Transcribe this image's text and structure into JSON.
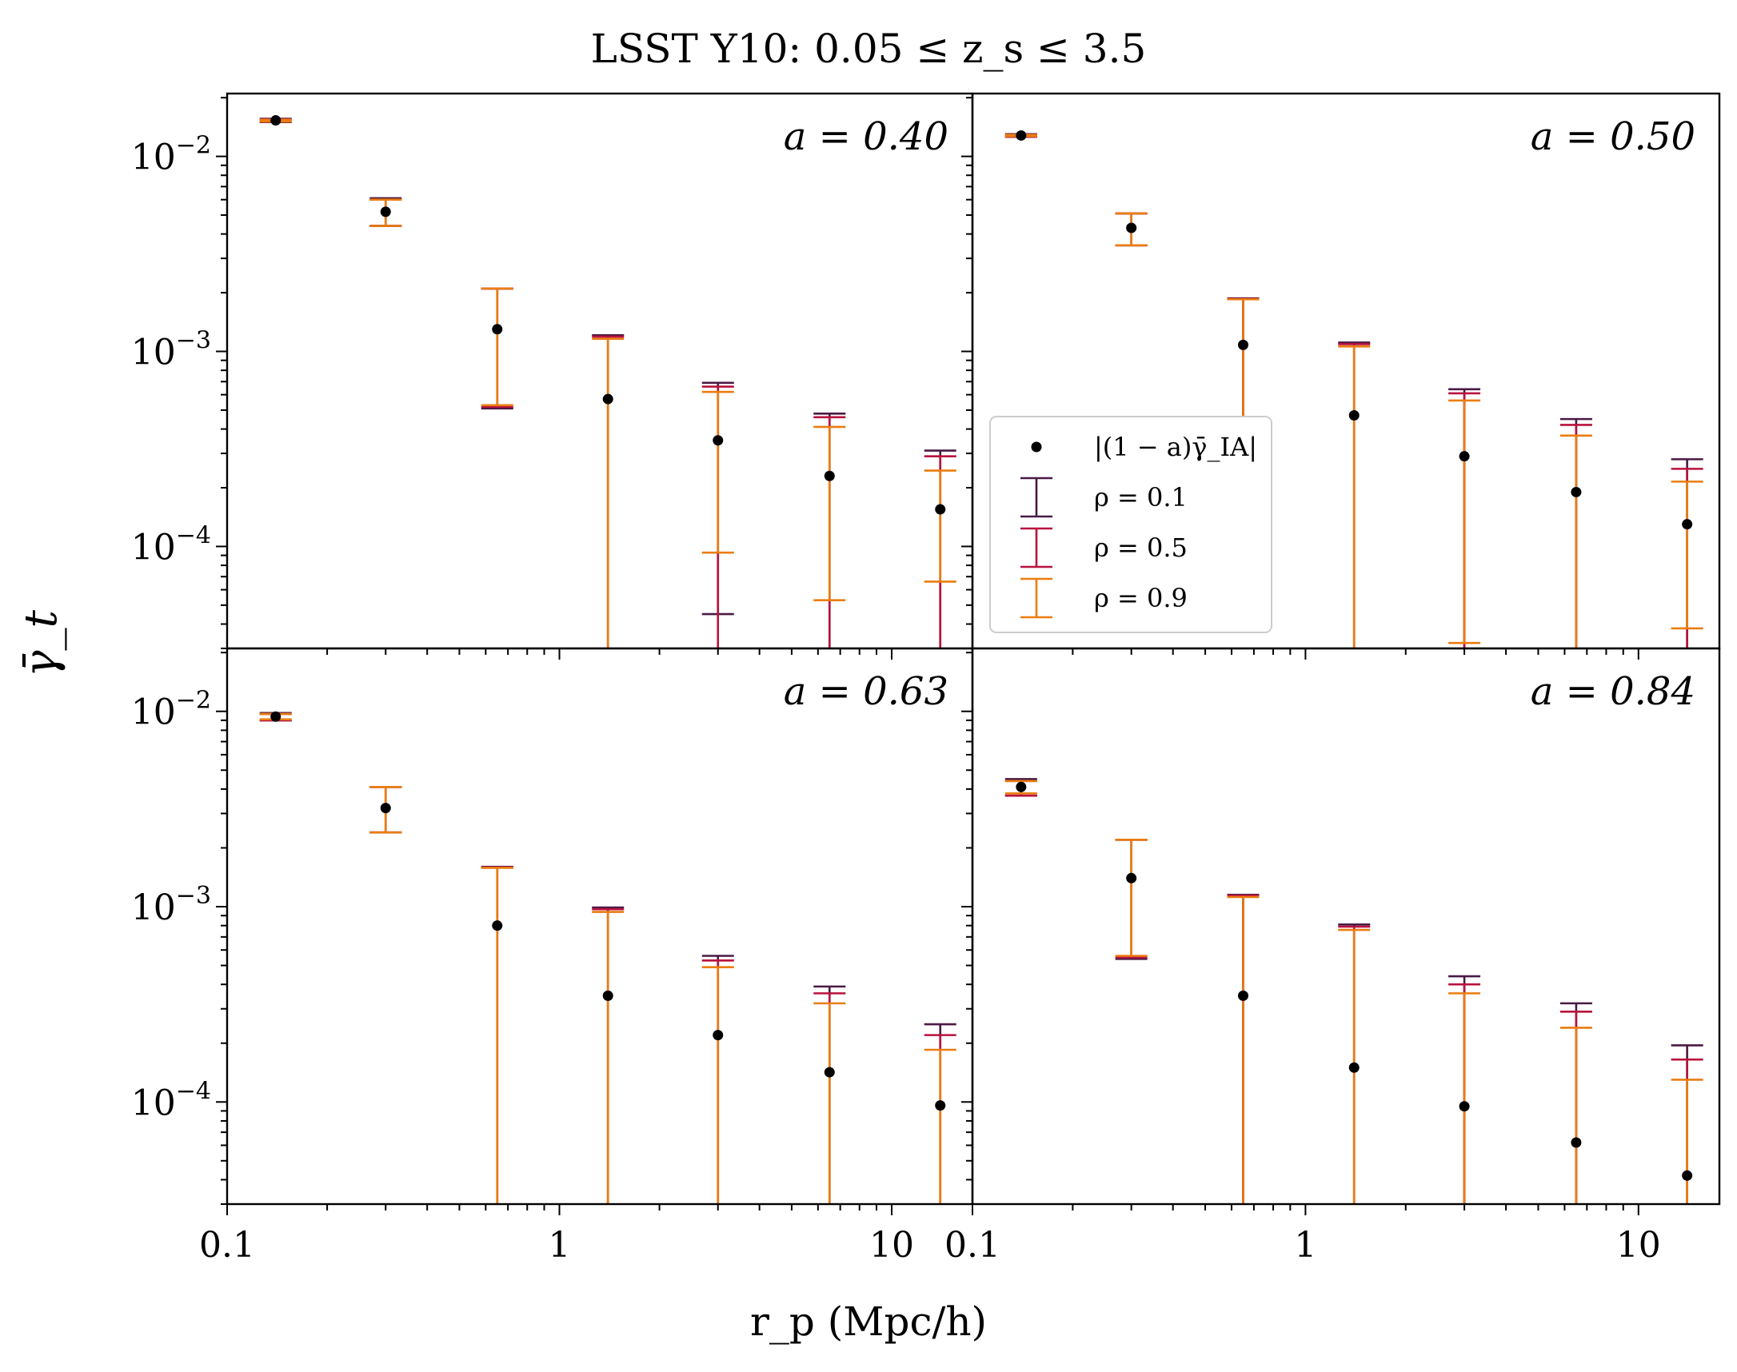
{
  "chart_data": {
    "type": "scatter",
    "title": "LSST Y10: 0.05 ≤ z_s ≤ 3.5",
    "xlabel": "r_p (Mpc/h)",
    "ylabel": "γ̄_t",
    "xscale": "log",
    "yscale": "log",
    "xlim": [
      0.1,
      17.5
    ],
    "ylim": [
      3e-05,
      0.021
    ],
    "x_tick_labels": [
      "0.1",
      "1",
      "10"
    ],
    "y_tick_labels": [
      {
        "base": "10",
        "exp": "−2"
      },
      {
        "base": "10",
        "exp": "−3"
      },
      {
        "base": "10",
        "exp": "−4"
      }
    ],
    "x": [
      0.14,
      0.3,
      0.65,
      1.4,
      3.0,
      6.5,
      14.0
    ],
    "colors": {
      "points": "#000000",
      "rho_0.1": "#4a1a44",
      "rho_0.5": "#b8123e",
      "rho_0.9": "#ea7d10"
    },
    "legend": {
      "placement": "center-left of top-right panel",
      "entries": [
        {
          "label": "|(1 − a)γ̄_IA|",
          "marker": "point",
          "color": "#000000"
        },
        {
          "label": "ρ = 0.1",
          "marker": "errorbar",
          "color": "#4a1a44"
        },
        {
          "label": "ρ = 0.5",
          "marker": "errorbar",
          "color": "#b8123e"
        },
        {
          "label": "ρ = 0.9",
          "marker": "errorbar",
          "color": "#ea7d10"
        }
      ]
    },
    "panels": [
      {
        "annotation": "a = 0.40",
        "y": [
          0.0153,
          0.0052,
          0.0013,
          0.00057,
          0.00035,
          0.00023,
          0.000155
        ],
        "errorbars": {
          "rho_0.1": {
            "upper": [
              0.0156,
              0.0061,
              0.0021,
              0.00121,
              0.00069,
              0.00048,
              0.00031
            ],
            "lower": [
              0.015,
              0.0044,
              0.00051,
              1e-06,
              4.5e-05,
              1e-06,
              1e-06
            ]
          },
          "rho_0.5": {
            "upper": [
              0.0155,
              0.006,
              0.0021,
              0.00119,
              0.00066,
              0.00046,
              0.00029
            ],
            "lower": [
              0.0151,
              0.0044,
              0.00052,
              1e-06,
              1e-06,
              1e-06,
              1e-06
            ]
          },
          "rho_0.9": {
            "upper": [
              0.0154,
              0.006,
              0.0021,
              0.00116,
              0.00062,
              0.00041,
              0.000245
            ],
            "lower": [
              0.0151,
              0.0044,
              0.00053,
              1e-06,
              9.3e-05,
              5.3e-05,
              6.6e-05
            ]
          }
        }
      },
      {
        "annotation": "a = 0.50",
        "y": [
          0.0128,
          0.0043,
          0.00108,
          0.00047,
          0.00029,
          0.00019,
          0.00013
        ],
        "errorbars": {
          "rho_0.1": {
            "upper": [
              0.013,
              0.0051,
              0.00187,
              0.00111,
              0.00064,
              0.00045,
              0.00028
            ],
            "lower": [
              0.0126,
              0.0035,
              0.00029,
              1e-06,
              1e-06,
              1e-06,
              1e-06
            ]
          },
          "rho_0.5": {
            "upper": [
              0.0129,
              0.0051,
              0.00186,
              0.00109,
              0.00061,
              0.00042,
              0.00025
            ],
            "lower": [
              0.0126,
              0.0035,
              0.0003,
              1e-06,
              1e-06,
              1e-06,
              1e-06
            ]
          },
          "rho_0.9": {
            "upper": [
              0.0129,
              0.0051,
              0.00185,
              0.00106,
              0.00056,
              0.00037,
              0.000215
            ],
            "lower": [
              0.0127,
              0.0035,
              0.00031,
              1e-06,
              3.2e-05,
              1e-06,
              3.8e-05
            ]
          }
        }
      },
      {
        "annotation": "a = 0.63",
        "y": [
          0.0094,
          0.0032,
          0.0008,
          0.00035,
          0.00022,
          0.000142,
          9.6e-05
        ],
        "errorbars": {
          "rho_0.1": {
            "upper": [
              0.0098,
              0.0041,
              0.0016,
              0.00099,
              0.00056,
              0.00039,
              0.00025
            ],
            "lower": [
              0.009,
              0.0024,
              1e-06,
              1e-06,
              1e-06,
              1e-06,
              1e-06
            ]
          },
          "rho_0.5": {
            "upper": [
              0.0097,
              0.0041,
              0.00159,
              0.00097,
              0.00053,
              0.00036,
              0.00022
            ],
            "lower": [
              0.009,
              0.0024,
              1e-06,
              1e-06,
              1e-06,
              1e-06,
              1e-06
            ]
          },
          "rho_0.9": {
            "upper": [
              0.0097,
              0.0041,
              0.00158,
              0.00094,
              0.00049,
              0.00032,
              0.000185
            ],
            "lower": [
              0.0091,
              0.0024,
              1e-06,
              1e-06,
              1e-06,
              1e-06,
              1e-06
            ]
          }
        }
      },
      {
        "annotation": "a = 0.84",
        "y": [
          0.0041,
          0.0014,
          0.00035,
          0.00015,
          9.5e-05,
          6.2e-05,
          4.2e-05
        ],
        "errorbars": {
          "rho_0.1": {
            "upper": [
              0.0045,
              0.0022,
              0.00115,
              0.00081,
              0.00044,
              0.00032,
              0.000195
            ],
            "lower": [
              0.0037,
              0.00054,
              1e-06,
              1e-06,
              1e-06,
              1e-06,
              1e-06
            ]
          },
          "rho_0.5": {
            "upper": [
              0.0044,
              0.0022,
              0.00114,
              0.00079,
              0.0004,
              0.00029,
              0.000165
            ],
            "lower": [
              0.0037,
              0.00055,
              1e-06,
              1e-06,
              1e-06,
              1e-06,
              1e-06
            ]
          },
          "rho_0.9": {
            "upper": [
              0.0044,
              0.0022,
              0.00112,
              0.00076,
              0.00036,
              0.00024,
              0.00013
            ],
            "lower": [
              0.0038,
              0.00056,
              1e-06,
              1e-06,
              1e-06,
              1e-06,
              1e-06
            ]
          }
        }
      }
    ]
  }
}
